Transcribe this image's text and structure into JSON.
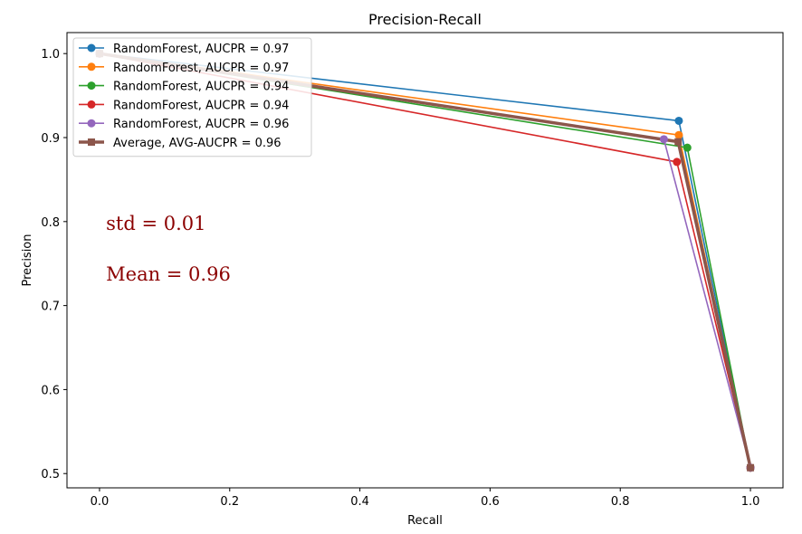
{
  "chart_data": {
    "type": "line",
    "title": "Precision-Recall",
    "xlabel": "Recall",
    "ylabel": "Precision",
    "xlim": [
      -0.05,
      1.05
    ],
    "ylim": [
      0.483,
      1.025
    ],
    "xticks": [
      0.0,
      0.2,
      0.4,
      0.6,
      0.8,
      1.0
    ],
    "yticks": [
      0.5,
      0.6,
      0.7,
      0.8,
      0.9,
      1.0
    ],
    "xtick_labels": [
      "0.0",
      "0.2",
      "0.4",
      "0.6",
      "0.8",
      "1.0"
    ],
    "ytick_labels": [
      "0.5",
      "0.6",
      "0.7",
      "0.8",
      "0.9",
      "1.0"
    ],
    "grid": false,
    "legend_position": "top-left",
    "series": [
      {
        "name": "RandomForest,  AUCPR = 0.97",
        "color": "#1f77b4",
        "marker": "circle",
        "x": [
          0.0,
          0.89,
          1.0
        ],
        "y": [
          1.0,
          0.92,
          0.507
        ]
      },
      {
        "name": "RandomForest,  AUCPR = 0.97",
        "color": "#ff7f0e",
        "marker": "circle",
        "x": [
          0.0,
          0.89,
          1.0
        ],
        "y": [
          1.0,
          0.903,
          0.507
        ]
      },
      {
        "name": "RandomForest,  AUCPR = 0.94",
        "color": "#2ca02c",
        "marker": "circle",
        "x": [
          0.0,
          0.903,
          1.0
        ],
        "y": [
          1.0,
          0.888,
          0.507
        ]
      },
      {
        "name": "RandomForest,  AUCPR = 0.94",
        "color": "#d62728",
        "marker": "circle",
        "x": [
          0.0,
          0.887,
          1.0
        ],
        "y": [
          1.0,
          0.871,
          0.507
        ]
      },
      {
        "name": "RandomForest,  AUCPR = 0.96",
        "color": "#9467bd",
        "marker": "circle",
        "x": [
          0.0,
          0.867,
          1.0
        ],
        "y": [
          1.0,
          0.898,
          0.507
        ]
      },
      {
        "name": "Average, AVG-AUCPR = 0.96",
        "color": "#8c564b",
        "marker": "square",
        "thick": true,
        "x": [
          0.0,
          0.889,
          1.0
        ],
        "y": [
          1.0,
          0.895,
          0.507
        ]
      }
    ],
    "annotations": [
      {
        "text": "std = 0.01",
        "x": 0.01,
        "y": 0.79
      },
      {
        "text": "Mean = 0.96",
        "x": 0.01,
        "y": 0.73
      }
    ]
  }
}
